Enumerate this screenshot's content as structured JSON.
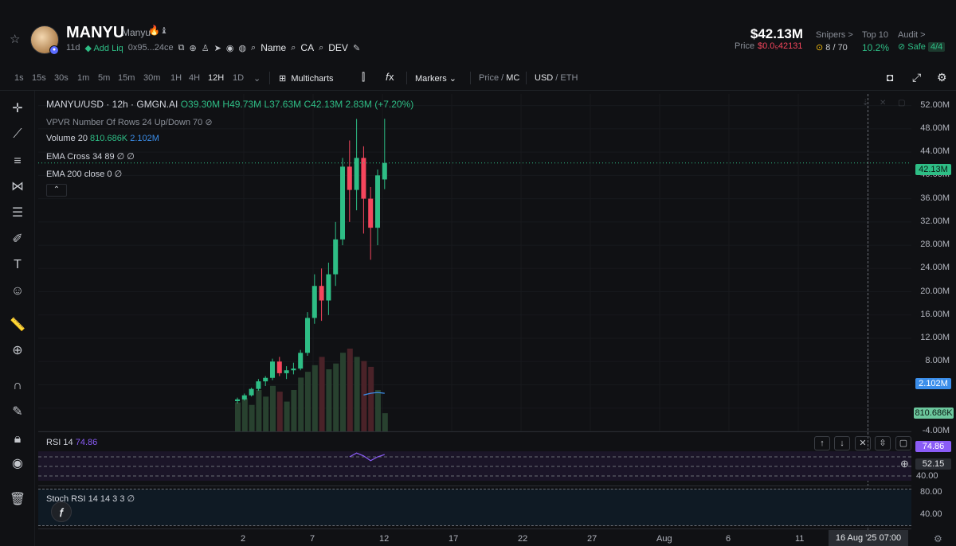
{
  "header": {
    "ticker": "MANYU",
    "name": "Manyu",
    "age": "11d",
    "add_liq": "Add Liq",
    "address": "0x95...24ce",
    "links": {
      "name": "Name",
      "ca": "CA",
      "dev": "DEV"
    },
    "market_cap": "$42.13M",
    "price_label": "Price",
    "price_value": "$0.0₅42131",
    "snipers": {
      "label": "Snipers >",
      "value": "8 / 70"
    },
    "top10": {
      "label": "Top 10",
      "value": "10.2%"
    },
    "audit": {
      "label": "Audit >",
      "value": "Safe",
      "score": "4/4"
    }
  },
  "toolbar": {
    "timeframes": [
      "1s",
      "15s",
      "30s",
      "1m",
      "5m",
      "15m",
      "30m",
      "1H",
      "4H",
      "12H",
      "1D"
    ],
    "active_timeframe": "12H",
    "multicharts": "Multicharts",
    "markers": "Markers",
    "price_label": "Price",
    "mc_label": "MC",
    "usd_label": "USD",
    "eth_label": "ETH"
  },
  "legend": {
    "symbol": "MANYU/USD · 12h · GMGN.AI",
    "o": "O39.30M",
    "h": "H49.73M",
    "l": "L37.63M",
    "c": "C42.13M",
    "change": "2.83M (+7.20%)",
    "vpvr": "VPVR Number Of Rows 24 Up/Down 70",
    "volume": "Volume 20",
    "volume_v1": "810.686K",
    "volume_v2": "2.102M",
    "ema_cross": "EMA Cross 34 89",
    "ema_cross_vals": "∅ ∅",
    "ema200": "EMA 200 close 0",
    "ema200_val": "∅"
  },
  "yaxis": {
    "ticks": [
      "52.00M",
      "48.00M",
      "44.00M",
      "40.00M",
      "36.00M",
      "32.00M",
      "28.00M",
      "24.00M",
      "20.00M",
      "16.00M",
      "12.00M",
      "8.00M",
      "-4.00M"
    ],
    "last_price_tag": "42.13M",
    "volume_ma_tag": "2.102M",
    "volume_tag": "810.686K"
  },
  "rsi": {
    "label": "RSI 14",
    "value": "74.86",
    "tag": "74.86",
    "crosshair_tag": "52.15",
    "tick": "40.00"
  },
  "stoch": {
    "label": "Stoch RSI 14 14 3 3",
    "value": "∅",
    "ticks": [
      "80.00",
      "40.00"
    ]
  },
  "xaxis": {
    "ticks": [
      "2",
      "7",
      "12",
      "17",
      "22",
      "27",
      "Aug",
      "6",
      "11"
    ],
    "crosshair": "16 Aug '25   07:00"
  },
  "colors": {
    "up": "#2ebd85",
    "down": "#f6465d",
    "ema": "#3b8eea",
    "rsi": "#8a5cf6"
  },
  "chart_data": {
    "type": "candlestick",
    "ylim": [
      -4,
      54
    ],
    "unit": "M",
    "candles": [
      {
        "o": 1.2,
        "h": 1.8,
        "l": 0.8,
        "c": 1.5
      },
      {
        "o": 1.5,
        "h": 2.5,
        "l": 1.3,
        "c": 2.2
      },
      {
        "o": 2.2,
        "h": 3.5,
        "l": 2.0,
        "c": 3.3
      },
      {
        "o": 3.3,
        "h": 5.0,
        "l": 3.0,
        "c": 4.6
      },
      {
        "o": 4.6,
        "h": 5.5,
        "l": 3.8,
        "c": 5.2
      },
      {
        "o": 5.2,
        "h": 8.5,
        "l": 4.8,
        "c": 8.0
      },
      {
        "o": 8.0,
        "h": 8.8,
        "l": 5.5,
        "c": 6.0
      },
      {
        "o": 6.0,
        "h": 7.2,
        "l": 5.0,
        "c": 6.5
      },
      {
        "o": 6.5,
        "h": 7.8,
        "l": 5.8,
        "c": 6.8
      },
      {
        "o": 6.8,
        "h": 10.0,
        "l": 6.5,
        "c": 9.5
      },
      {
        "o": 9.5,
        "h": 16.5,
        "l": 9.0,
        "c": 15.5
      },
      {
        "o": 15.5,
        "h": 23.0,
        "l": 14.5,
        "c": 21.0
      },
      {
        "o": 21.0,
        "h": 24.0,
        "l": 15.0,
        "c": 18.5
      },
      {
        "o": 18.5,
        "h": 25.0,
        "l": 16.0,
        "c": 23.0
      },
      {
        "o": 23.0,
        "h": 32.0,
        "l": 21.0,
        "c": 29.0
      },
      {
        "o": 29.0,
        "h": 43.0,
        "l": 28.0,
        "c": 41.5
      },
      {
        "o": 41.5,
        "h": 46.0,
        "l": 32.0,
        "c": 37.5
      },
      {
        "o": 37.5,
        "h": 49.7,
        "l": 34.0,
        "c": 43.0
      },
      {
        "o": 43.0,
        "h": 45.0,
        "l": 30.0,
        "c": 36.0
      },
      {
        "o": 36.0,
        "h": 38.0,
        "l": 25.5,
        "c": 31.0
      },
      {
        "o": 31.0,
        "h": 41.0,
        "l": 28.0,
        "c": 40.0
      },
      {
        "o": 39.3,
        "h": 49.73,
        "l": 37.63,
        "c": 42.13
      }
    ],
    "volume_max": 10,
    "volumes": [
      3.5,
      4.0,
      3.2,
      5.0,
      4.2,
      5.5,
      4.8,
      3.6,
      5.0,
      6.5,
      7.2,
      8.0,
      9.0,
      7.5,
      8.2,
      9.5,
      10.0,
      9.0,
      8.5,
      7.8,
      5.0,
      2.2
    ],
    "volume_ma": [
      null,
      null,
      null,
      null,
      null,
      null,
      null,
      null,
      null,
      null,
      null,
      null,
      null,
      null,
      null,
      null,
      null,
      null,
      4.4,
      4.6,
      4.7,
      4.6
    ],
    "rsi": [
      null,
      null,
      null,
      null,
      null,
      null,
      null,
      null,
      null,
      null,
      null,
      null,
      null,
      null,
      null,
      null,
      70,
      78,
      72,
      62,
      70,
      74.86
    ],
    "rsi_levels": [
      70,
      50,
      30
    ]
  }
}
